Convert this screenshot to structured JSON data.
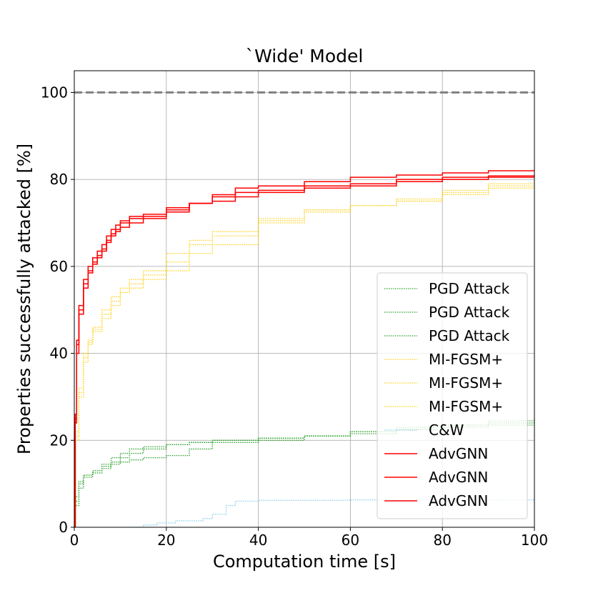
{
  "chart_data": {
    "type": "line",
    "title": "`Wide' Model",
    "xlabel": "Computation time [s]",
    "ylabel": "Properties successfully attacked [%]",
    "xlim": [
      0,
      100
    ],
    "ylim": [
      0,
      105
    ],
    "xticks": [
      0,
      20,
      40,
      60,
      80,
      100
    ],
    "yticks": [
      0,
      20,
      40,
      60,
      80,
      100
    ],
    "grid": true,
    "legend_position": "lower-right",
    "reference_line": {
      "y": 100,
      "color": "#808080",
      "style": "dashed"
    },
    "colors": {
      "pgd": "#2ca02c",
      "mifgsm": "#ffd21f",
      "cw": "#87ceeb",
      "advgnn": "#ff0000"
    },
    "series": [
      {
        "name": "PGD Attack",
        "color": "#2ca02c",
        "style": "dotted",
        "x": [
          0,
          0.3,
          1,
          2,
          4,
          6,
          8,
          10,
          12,
          15,
          20,
          25,
          30,
          40,
          50,
          60,
          70,
          80,
          90,
          100
        ],
        "y": [
          0,
          6,
          10,
          12,
          13,
          14,
          15,
          16,
          17,
          18,
          19,
          19.5,
          20,
          20.5,
          21,
          22,
          23,
          23.5,
          24,
          25
        ]
      },
      {
        "name": "PGD Attack",
        "color": "#2ca02c",
        "style": "dotted",
        "x": [
          0,
          0.3,
          1,
          2,
          4,
          6,
          8,
          10,
          12,
          15,
          20,
          25,
          30,
          40,
          50,
          60,
          70,
          80,
          90,
          100
        ],
        "y": [
          0,
          5,
          9,
          11.5,
          12.5,
          13.5,
          14.5,
          15,
          15.5,
          16,
          16.5,
          18,
          19.5,
          20,
          21,
          22,
          22.5,
          23,
          23.5,
          24
        ]
      },
      {
        "name": "PGD Attack",
        "color": "#2ca02c",
        "style": "dotted",
        "x": [
          0,
          0.3,
          1,
          2,
          4,
          6,
          8,
          10,
          12,
          15,
          20,
          25,
          30,
          40,
          50,
          60,
          70,
          80,
          90,
          100
        ],
        "y": [
          0,
          7,
          10.5,
          12,
          13,
          14.5,
          16,
          17,
          18,
          18.5,
          19,
          19.5,
          20,
          20.5,
          21,
          21.5,
          22.5,
          23.5,
          24.5,
          25.3
        ]
      },
      {
        "name": "MI-FGSM+",
        "color": "#ffd21f",
        "style": "dotted",
        "x": [
          0,
          0.3,
          1,
          2,
          3,
          4,
          6,
          8,
          10,
          12,
          15,
          20,
          25,
          30,
          40,
          50,
          60,
          70,
          80,
          90,
          100
        ],
        "y": [
          0,
          20,
          30,
          38,
          42,
          45,
          48,
          51,
          54,
          55,
          57,
          59,
          63,
          65,
          70,
          73,
          74,
          75,
          77,
          78.5,
          80
        ]
      },
      {
        "name": "MI-FGSM+",
        "color": "#ffd21f",
        "style": "dotted",
        "x": [
          0,
          0.3,
          1,
          2,
          3,
          4,
          6,
          8,
          10,
          12,
          15,
          20,
          25,
          30,
          40,
          50,
          60,
          70,
          80,
          90,
          100
        ],
        "y": [
          0,
          22,
          32,
          40,
          43,
          46,
          50,
          53,
          55,
          57,
          59,
          63,
          66,
          68,
          71,
          73,
          74,
          75,
          76.5,
          78,
          79
        ]
      },
      {
        "name": "MI-FGSM+",
        "color": "#ffd21f",
        "style": "dotted",
        "x": [
          0,
          0.3,
          1,
          2,
          3,
          4,
          6,
          8,
          10,
          12,
          15,
          20,
          25,
          30,
          40,
          50,
          60,
          70,
          80,
          90,
          100
        ],
        "y": [
          0,
          21,
          31,
          39,
          42.5,
          45.5,
          49,
          52,
          54,
          56,
          58,
          61,
          65,
          67,
          70.5,
          72.5,
          74,
          75.5,
          77.5,
          79,
          80
        ]
      },
      {
        "name": "C&W",
        "color": "#87ceeb",
        "style": "dotted",
        "x": [
          12,
          15,
          18,
          22,
          26,
          28,
          30,
          33,
          35,
          40,
          60,
          80,
          100
        ],
        "y": [
          0,
          0.5,
          1,
          1.5,
          1.5,
          2,
          3,
          5,
          6,
          6.2,
          6.3,
          6.3,
          6.3
        ]
      },
      {
        "name": "AdvGNN",
        "color": "#ff0000",
        "style": "solid",
        "x": [
          0,
          0.2,
          0.5,
          1,
          2,
          3,
          4,
          5,
          6,
          7,
          8,
          9,
          10,
          12,
          15,
          20,
          25,
          30,
          35,
          40,
          50,
          60,
          70,
          80,
          90,
          100
        ],
        "y": [
          0,
          25,
          42,
          50,
          56,
          59,
          61,
          62.5,
          64,
          66,
          67.5,
          68.5,
          70,
          71,
          71.5,
          73,
          74.5,
          76,
          77,
          77.5,
          78,
          78.5,
          79.5,
          80,
          80.5,
          81
        ]
      },
      {
        "name": "AdvGNN",
        "color": "#ff0000",
        "style": "solid",
        "x": [
          0,
          0.2,
          0.5,
          1,
          2,
          3,
          4,
          5,
          6,
          7,
          8,
          9,
          10,
          12,
          15,
          20,
          25,
          30,
          35,
          40,
          50,
          60,
          70,
          80,
          90,
          100
        ],
        "y": [
          0,
          24,
          40,
          49,
          55,
          58.5,
          60.5,
          62,
          63.5,
          65.5,
          67,
          68,
          69,
          70,
          71,
          72.5,
          74.5,
          75,
          76,
          77,
          78.5,
          79,
          80,
          80.5,
          80.8,
          81.2
        ]
      },
      {
        "name": "AdvGNN",
        "color": "#ff0000",
        "style": "solid",
        "x": [
          0,
          0.2,
          0.5,
          1,
          2,
          3,
          4,
          5,
          6,
          7,
          8,
          9,
          10,
          12,
          15,
          20,
          25,
          30,
          35,
          40,
          50,
          60,
          70,
          80,
          90,
          100
        ],
        "y": [
          0,
          26,
          43,
          51,
          57,
          60,
          62,
          63.5,
          65,
          67,
          68.5,
          69.5,
          70.5,
          71.5,
          72,
          73.5,
          74.5,
          76.5,
          78,
          78.5,
          79.5,
          80.5,
          81,
          81.5,
          82,
          82.3
        ]
      }
    ]
  }
}
